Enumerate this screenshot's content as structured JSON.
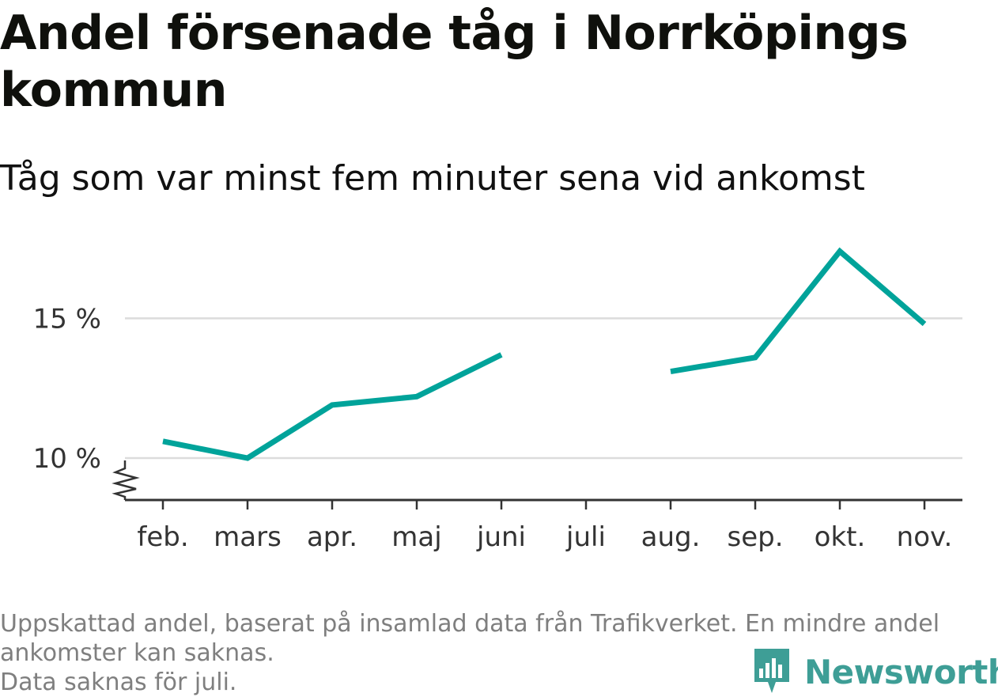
{
  "title": "Andel försenade tåg i Norrköpings kommun",
  "subtitle": "Tåg som var minst fem minuter sena vid ankomst",
  "footnote": {
    "line1": "Uppskattad andel, baserat på insamlad data från Trafikverket. En mindre andel",
    "line2": "ankomster kan saknas.",
    "line3": "Data saknas för juli."
  },
  "brand": {
    "name": "Newsworthy",
    "icon": "newsworthy-logo-icon",
    "color": "#3e9e96"
  },
  "chart_data": {
    "type": "line",
    "categories": [
      "feb.",
      "mars",
      "apr.",
      "maj",
      "juni",
      "juli",
      "aug.",
      "sep.",
      "okt.",
      "nov."
    ],
    "series": [
      {
        "values": [
          10.6,
          10.0,
          11.9,
          12.2,
          13.7,
          null,
          13.1,
          13.6,
          17.4,
          14.8
        ],
        "color": "#00a39a"
      }
    ],
    "yticks": [
      {
        "value": 10,
        "label": "10 %"
      },
      {
        "value": 15,
        "label": "15 %"
      }
    ],
    "ylim": [
      8.5,
      17.9
    ],
    "y_axis_break": true,
    "grid": true,
    "legend": "none"
  }
}
